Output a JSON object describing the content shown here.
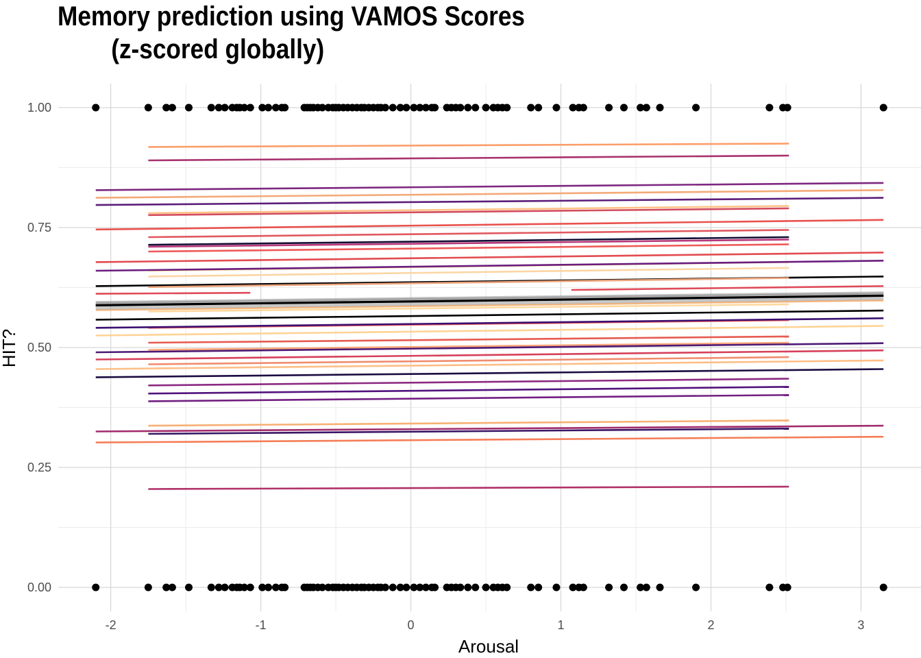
{
  "chart_data": {
    "type": "scatter",
    "title": "Memory prediction using VAMOS Scores\n        (z-scored globally)",
    "xlabel": "Arousal",
    "ylabel": "HIT?",
    "xlim": [
      -2.35,
      3.4
    ],
    "ylim": [
      -0.05,
      1.05
    ],
    "xticks": [
      -2,
      -1,
      0,
      1,
      2,
      3
    ],
    "xtick_labels": [
      "-2",
      "-1",
      "0",
      "1",
      "2",
      "3"
    ],
    "yticks": [
      0,
      0.25,
      0.5,
      0.75,
      1.0
    ],
    "ytick_labels": [
      "0.00",
      "0.25",
      "0.50",
      "0.75",
      "1.00"
    ],
    "grid": true,
    "legend": "none",
    "points_x": [
      -2.1,
      -1.75,
      -1.63,
      -1.59,
      -1.48,
      -1.33,
      -1.28,
      -1.24,
      -1.19,
      -1.16,
      -1.14,
      -1.11,
      -1.07,
      -0.99,
      -0.95,
      -0.9,
      -0.86,
      -0.84,
      -0.71,
      -0.69,
      -0.67,
      -0.65,
      -0.62,
      -0.59,
      -0.55,
      -0.52,
      -0.5,
      -0.48,
      -0.45,
      -0.42,
      -0.39,
      -0.36,
      -0.33,
      -0.31,
      -0.28,
      -0.25,
      -0.22,
      -0.2,
      -0.17,
      -0.12,
      -0.07,
      -0.03,
      0.02,
      0.06,
      0.1,
      0.14,
      0.16,
      0.24,
      0.27,
      0.3,
      0.33,
      0.38,
      0.43,
      0.5,
      0.55,
      0.58,
      0.61,
      0.64,
      0.8,
      0.85,
      0.97,
      1.08,
      1.12,
      1.15,
      1.32,
      1.42,
      1.53,
      1.57,
      1.66,
      1.9,
      2.39,
      2.48,
      2.51,
      3.15
    ],
    "points_y": [
      0,
      1
    ],
    "fit_lines": [
      {
        "x": [
          -1.75,
          2.52
        ],
        "y": [
          0.918,
          0.925
        ],
        "color": "#fb9e69"
      },
      {
        "x": [
          -1.75,
          2.52
        ],
        "y": [
          0.89,
          0.9
        ],
        "color": "#a8326e"
      },
      {
        "x": [
          -2.1,
          3.15
        ],
        "y": [
          0.828,
          0.843
        ],
        "color": "#7d2880"
      },
      {
        "x": [
          -2.1,
          3.15
        ],
        "y": [
          0.812,
          0.828
        ],
        "color": "#f4a978"
      },
      {
        "x": [
          -2.1,
          3.15
        ],
        "y": [
          0.797,
          0.812
        ],
        "color": "#5c1d79"
      },
      {
        "x": [
          -1.75,
          2.52
        ],
        "y": [
          0.78,
          0.795
        ],
        "color": "#fec287"
      },
      {
        "x": [
          -1.75,
          2.52
        ],
        "y": [
          0.776,
          0.79
        ],
        "color": "#d24b5e"
      },
      {
        "x": [
          -2.1,
          3.15
        ],
        "y": [
          0.746,
          0.766
        ],
        "color": "#e8524e"
      },
      {
        "x": [
          -1.75,
          2.52
        ],
        "y": [
          0.73,
          0.745
        ],
        "color": "#e1585f"
      },
      {
        "x": [
          -1.75,
          2.52
        ],
        "y": [
          0.714,
          0.73
        ],
        "color": "#140e36"
      },
      {
        "x": [
          -1.75,
          2.52
        ],
        "y": [
          0.71,
          0.725
        ],
        "color": "#b73779"
      },
      {
        "x": [
          -1.75,
          2.52
        ],
        "y": [
          0.7,
          0.715
        ],
        "color": "#ee5a58"
      },
      {
        "x": [
          -2.1,
          3.15
        ],
        "y": [
          0.678,
          0.698
        ],
        "color": "#e24b4f"
      },
      {
        "x": [
          -1.75,
          2.52
        ],
        "y": [
          0.66,
          0.678
        ],
        "color": "#fde3a7"
      },
      {
        "x": [
          -2.1,
          3.15
        ],
        "y": [
          0.66,
          0.681
        ],
        "color": "#6a1d7e"
      },
      {
        "x": [
          -1.75,
          2.52
        ],
        "y": [
          0.648,
          0.666
        ],
        "color": "#fcd5a4"
      },
      {
        "x": [
          -2.1,
          3.15
        ],
        "y": [
          0.628,
          0.648
        ],
        "color": "#000004"
      },
      {
        "x": [
          -1.75,
          2.52
        ],
        "y": [
          0.626,
          0.645
        ],
        "color": "#eaa37a"
      },
      {
        "x": [
          -2.1,
          -1.07
        ],
        "y": [
          0.612,
          0.614
        ],
        "color": "#df4a58"
      },
      {
        "x": [
          1.07,
          3.15
        ],
        "y": [
          0.62,
          0.628
        ],
        "color": "#df4a58"
      },
      {
        "x": [
          -2.1,
          3.15
        ],
        "y": [
          0.593,
          0.613
        ],
        "color": "#b0b0b0"
      },
      {
        "x": [
          -2.1,
          3.15
        ],
        "y": [
          0.588,
          0.608
        ],
        "color": "#000000"
      },
      {
        "x": [
          -2.1,
          3.15
        ],
        "y": [
          0.578,
          0.598
        ],
        "color": "#f7b87f"
      },
      {
        "x": [
          -1.75,
          2.52
        ],
        "y": [
          0.575,
          0.59
        ],
        "color": "#fdd9a0"
      },
      {
        "x": [
          -2.1,
          3.15
        ],
        "y": [
          0.558,
          0.577
        ],
        "color": "#000004"
      },
      {
        "x": [
          -1.75,
          2.52
        ],
        "y": [
          0.541,
          0.557
        ],
        "color": "#f0605d"
      },
      {
        "x": [
          -2.1,
          3.15
        ],
        "y": [
          0.541,
          0.561
        ],
        "color": "#3b0f70"
      },
      {
        "x": [
          -2.1,
          3.15
        ],
        "y": [
          0.525,
          0.545
        ],
        "color": "#fed395"
      },
      {
        "x": [
          -1.75,
          2.52
        ],
        "y": [
          0.51,
          0.523
        ],
        "color": "#e65a50"
      },
      {
        "x": [
          -1.75,
          2.52
        ],
        "y": [
          0.495,
          0.51
        ],
        "color": "#faa77a"
      },
      {
        "x": [
          -2.1,
          3.15
        ],
        "y": [
          0.49,
          0.509
        ],
        "color": "#4d1a74"
      },
      {
        "x": [
          -2.1,
          3.15
        ],
        "y": [
          0.475,
          0.494
        ],
        "color": "#d6405a"
      },
      {
        "x": [
          -1.75,
          2.52
        ],
        "y": [
          0.465,
          0.48
        ],
        "color": "#f08c6e"
      },
      {
        "x": [
          -2.1,
          3.15
        ],
        "y": [
          0.455,
          0.473
        ],
        "color": "#fdbe86"
      },
      {
        "x": [
          -2.1,
          3.15
        ],
        "y": [
          0.438,
          0.455
        ],
        "color": "#1b0c41"
      },
      {
        "x": [
          -1.75,
          2.52
        ],
        "y": [
          0.421,
          0.435
        ],
        "color": "#8c2981"
      },
      {
        "x": [
          -1.75,
          2.52
        ],
        "y": [
          0.404,
          0.418
        ],
        "color": "#51127c"
      },
      {
        "x": [
          -1.75,
          2.52
        ],
        "y": [
          0.388,
          0.401
        ],
        "color": "#721f81"
      },
      {
        "x": [
          -1.75,
          2.52
        ],
        "y": [
          0.337,
          0.348
        ],
        "color": "#f7b074"
      },
      {
        "x": [
          -2.1,
          3.15
        ],
        "y": [
          0.325,
          0.337
        ],
        "color": "#a12b6c"
      },
      {
        "x": [
          -1.75,
          2.52
        ],
        "y": [
          0.32,
          0.331
        ],
        "color": "#3a1565"
      },
      {
        "x": [
          -2.1,
          3.15
        ],
        "y": [
          0.302,
          0.314
        ],
        "color": "#f57d57"
      },
      {
        "x": [
          -1.75,
          2.52
        ],
        "y": [
          0.205,
          0.21
        ],
        "color": "#b0306a"
      }
    ],
    "overall_fit": {
      "x": [
        -2.1,
        3.15
      ],
      "y": [
        0.588,
        0.608
      ],
      "color": "#000000",
      "band_color": "#999999"
    }
  }
}
